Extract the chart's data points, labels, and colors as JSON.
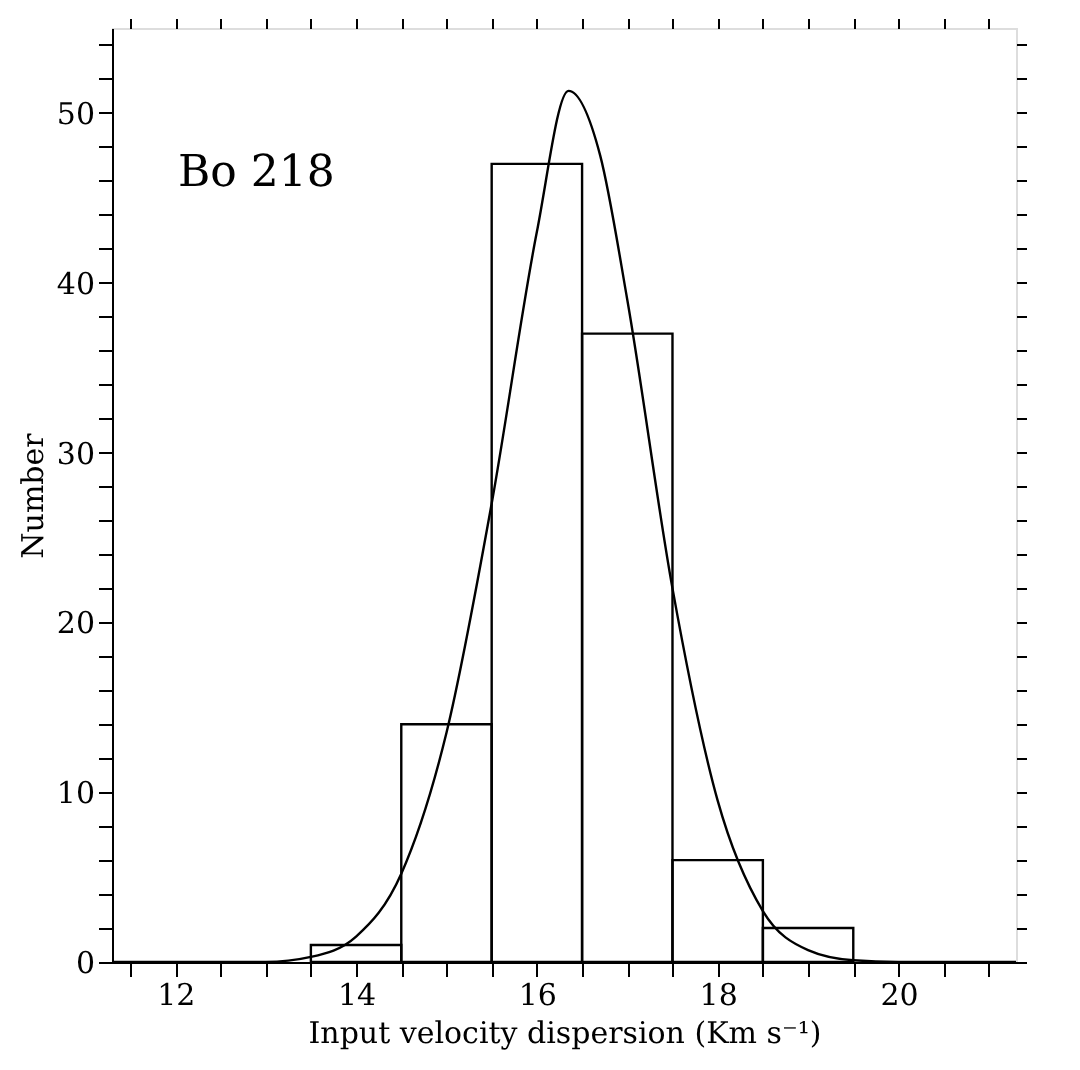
{
  "chart_data": {
    "type": "histogram",
    "xlabel": "Input velocity dispersion (Km s⁻¹)",
    "ylabel": "Number",
    "annotations": [
      "Bo 218"
    ],
    "bins": [
      13.5,
      14.5,
      15.5,
      16.5,
      17.5,
      18.5,
      19.5
    ],
    "values": [
      1,
      14,
      47,
      37,
      6,
      2
    ],
    "color": "#000000",
    "series": [
      {
        "type": "line",
        "color": "#000000",
        "x": [
          11.3,
          12.5,
          13.0,
          13.5,
          14.0,
          14.5,
          15.0,
          15.5,
          16.0,
          16.35,
          16.7,
          17.0,
          17.5,
          18.0,
          18.5,
          19.0,
          19.5,
          20.0,
          21.3
        ],
        "values": [
          0,
          0,
          0,
          0.3,
          1.5,
          5.2,
          13.5,
          27,
          43,
          51.3,
          47.5,
          39,
          22,
          9.5,
          3,
          0.7,
          0.1,
          0,
          0
        ]
      }
    ],
    "xlim": [
      11.3,
      21.3
    ],
    "ylim": [
      0,
      55
    ],
    "xticks": [
      {
        "value": 11.5,
        "label": null
      },
      12,
      {
        "value": 12.5,
        "label": null
      },
      {
        "value": 13,
        "label": null
      },
      {
        "value": 13.5,
        "label": null
      },
      14,
      {
        "value": 14.5,
        "label": null
      },
      {
        "value": 15,
        "label": null
      },
      {
        "value": 15.5,
        "label": null
      },
      16,
      {
        "value": 16.5,
        "label": null
      },
      {
        "value": 17,
        "label": null
      },
      {
        "value": 17.5,
        "label": null
      },
      18,
      {
        "value": 18.5,
        "label": null
      },
      {
        "value": 19,
        "label": null
      },
      {
        "value": 19.5,
        "label": null
      },
      20,
      {
        "value": 20.5,
        "label": null
      },
      {
        "value": 21,
        "label": null
      }
    ],
    "yticks": [
      0,
      {
        "value": 2,
        "label": null
      },
      {
        "value": 4,
        "label": null
      },
      {
        "value": 6,
        "label": null
      },
      {
        "value": 8,
        "label": null
      },
      10,
      {
        "value": 12,
        "label": null
      },
      {
        "value": 14,
        "label": null
      },
      {
        "value": 16,
        "label": null
      },
      {
        "value": 18,
        "label": null
      },
      20,
      {
        "value": 22,
        "label": null
      },
      {
        "value": 24,
        "label": null
      },
      {
        "value": 26,
        "label": null
      },
      {
        "value": 28,
        "label": null
      },
      30,
      {
        "value": 32,
        "label": null
      },
      {
        "value": 34,
        "label": null
      },
      {
        "value": 36,
        "label": null
      },
      {
        "value": 38,
        "label": null
      },
      40,
      {
        "value": 42,
        "label": null
      },
      {
        "value": 44,
        "label": null
      },
      {
        "value": 46,
        "label": null
      },
      {
        "value": 48,
        "label": null
      },
      50,
      {
        "value": 52,
        "label": null
      },
      {
        "value": 54,
        "label": null
      }
    ],
    "grid": false
  }
}
